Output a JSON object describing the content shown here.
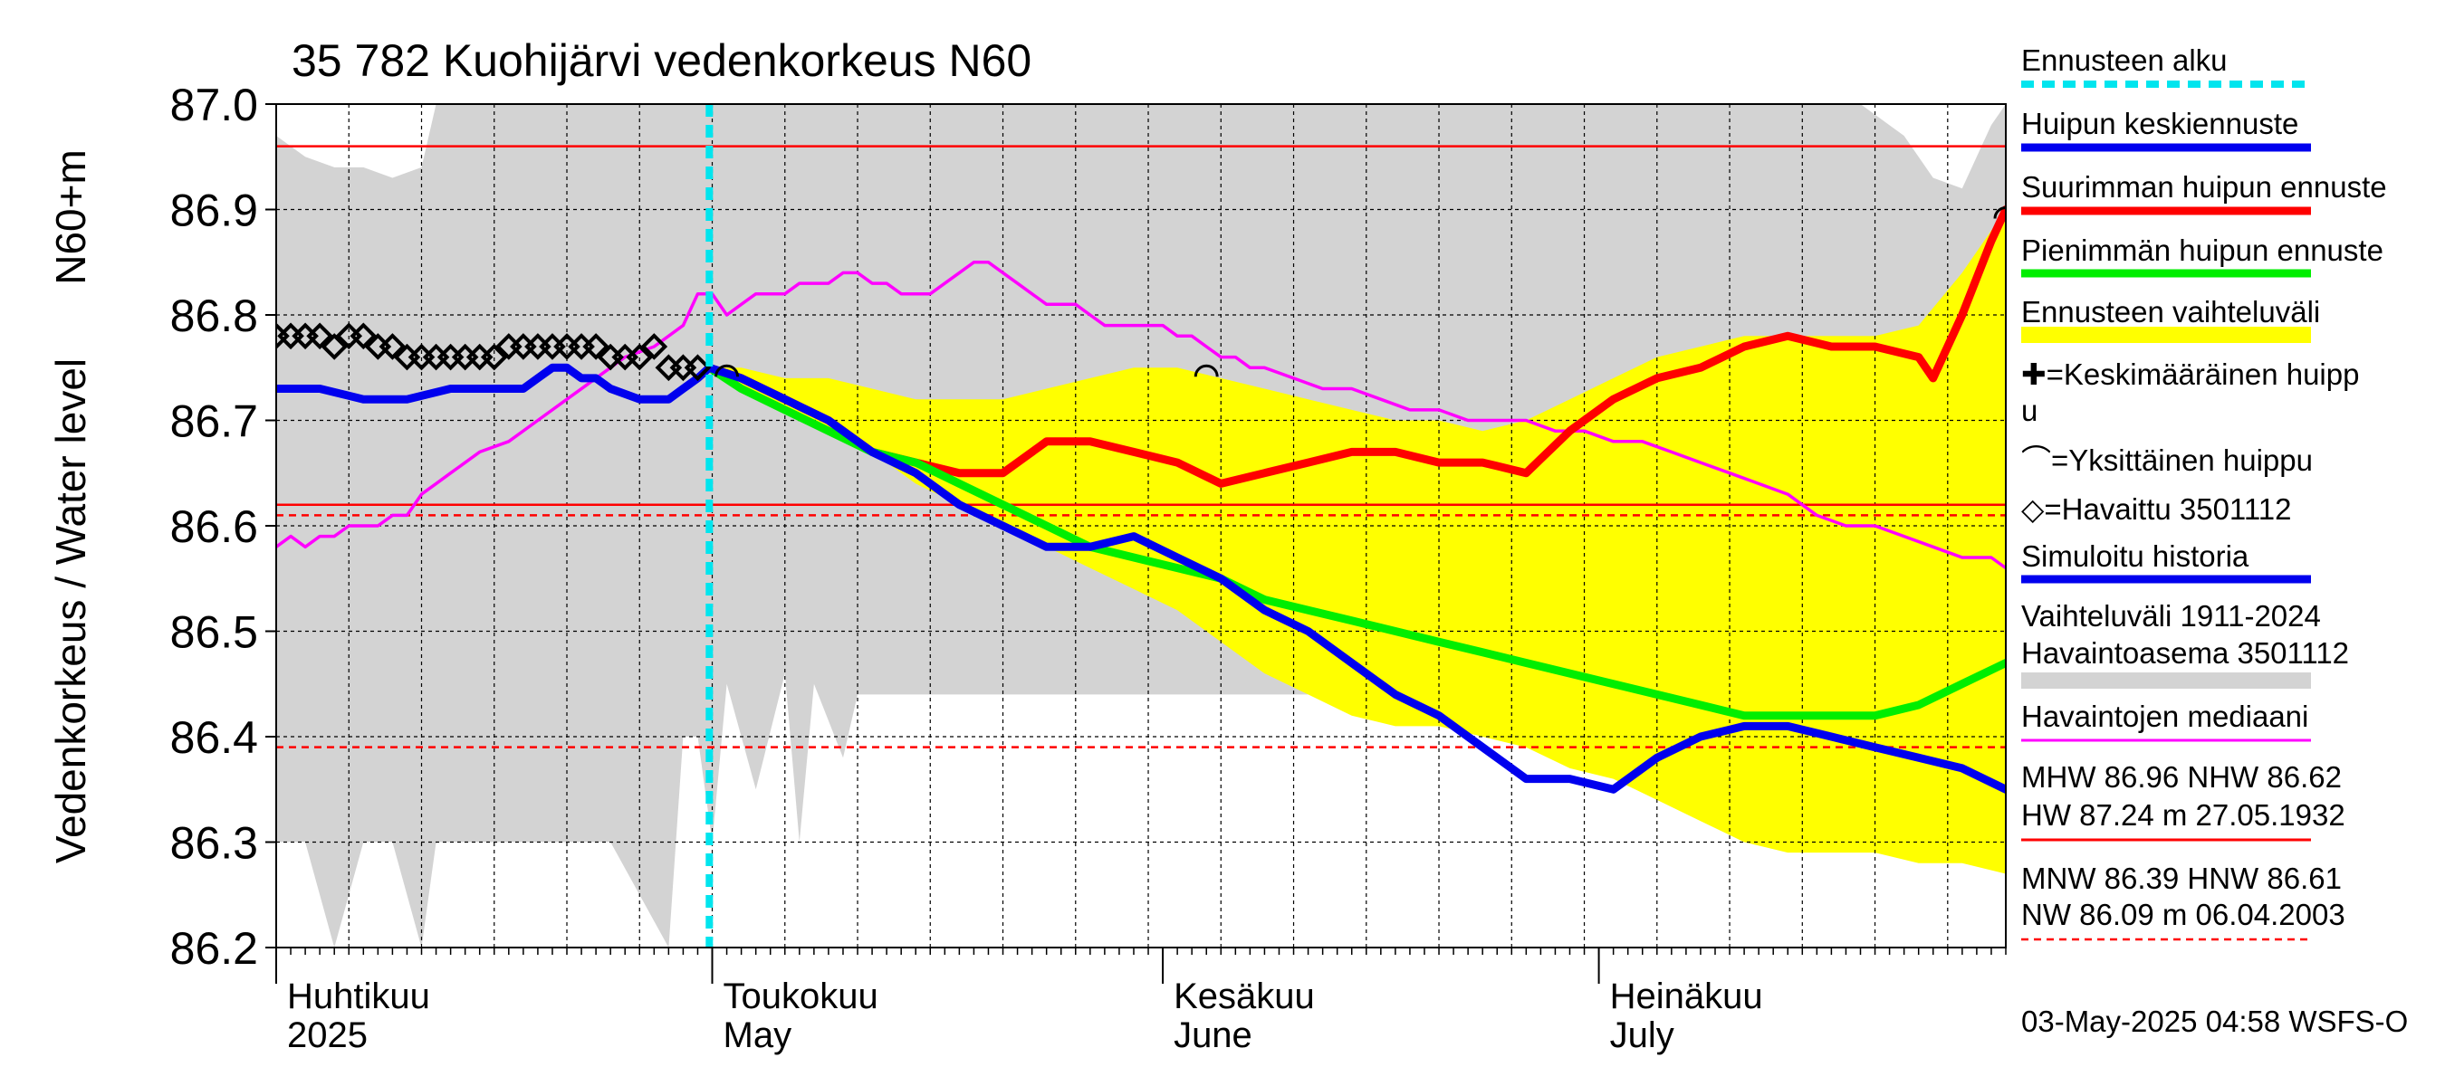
{
  "chart_data": {
    "type": "line",
    "title": "35 782 Kuohijärvi vedenkorkeus N60",
    "ylabel_left": "Vedenkorkeus / Water level",
    "ylabel_right": "N60+m",
    "ylim": [
      86.2,
      87.0
    ],
    "yticks": [
      "86.2",
      "86.3",
      "86.4",
      "86.5",
      "86.6",
      "86.7",
      "86.8",
      "86.9",
      "87.0"
    ],
    "x_range_days": [
      0,
      119
    ],
    "month_labels": [
      {
        "fi": "Huhtikuu",
        "en": "2025",
        "day": 0
      },
      {
        "fi": "Toukokuu",
        "en": "May",
        "day": 30
      },
      {
        "fi": "Kesäkuu",
        "en": "June",
        "day": 61
      },
      {
        "fi": "Heinäkuu",
        "en": "July",
        "day": 91
      }
    ],
    "forecast_start_day": 29.8,
    "reference_lines": [
      {
        "name": "MHW",
        "value": 86.96,
        "color": "#ff0000",
        "style": "solid"
      },
      {
        "name": "NHW",
        "value": 86.62,
        "color": "#ff0000",
        "style": "solid"
      },
      {
        "name": "HNW",
        "value": 86.61,
        "color": "#ff0000",
        "style": "dashed"
      },
      {
        "name": "MNW",
        "value": 86.39,
        "color": "#ff0000",
        "style": "dashed"
      }
    ],
    "grey_band": {
      "x": [
        0,
        2,
        4,
        6,
        8,
        10,
        11,
        13,
        15,
        17,
        20,
        23,
        25,
        27,
        28,
        29,
        30,
        31,
        33,
        35,
        36,
        37,
        39,
        40,
        42,
        45,
        48,
        50,
        52,
        55,
        58,
        61,
        64,
        67,
        70,
        73,
        76,
        79,
        82,
        85,
        88,
        91,
        94,
        97,
        100,
        103,
        106,
        109,
        112,
        114,
        116,
        118,
        119
      ],
      "upper": [
        86.97,
        86.95,
        86.94,
        86.94,
        86.93,
        86.94,
        87.0,
        87.0,
        87.0,
        87.0,
        87.0,
        87.0,
        87.0,
        87.0,
        87.0,
        87.0,
        87.0,
        87.0,
        87.0,
        87.0,
        87.0,
        87.0,
        87.0,
        87.0,
        87.0,
        87.0,
        87.0,
        87.0,
        87.0,
        87.0,
        87.0,
        87.0,
        87.0,
        87.0,
        87.0,
        87.0,
        87.0,
        87.0,
        87.0,
        87.0,
        87.0,
        87.0,
        87.0,
        87.0,
        87.0,
        87.0,
        87.0,
        87.0,
        86.97,
        86.93,
        86.92,
        86.98,
        87.0
      ],
      "lower": [
        86.3,
        86.3,
        86.2,
        86.3,
        86.3,
        86.2,
        86.3,
        86.3,
        86.3,
        86.3,
        86.3,
        86.3,
        86.25,
        86.2,
        86.4,
        86.4,
        86.3,
        86.45,
        86.35,
        86.46,
        86.3,
        86.45,
        86.38,
        86.44,
        86.44,
        86.44,
        86.44,
        86.44,
        86.44,
        86.44,
        86.44,
        86.44,
        86.44,
        86.44,
        86.44,
        86.44,
        86.44,
        86.44,
        86.43,
        86.42,
        86.42,
        86.41,
        86.41,
        86.41,
        86.4,
        86.4,
        86.4,
        86.4,
        86.39,
        86.38,
        86.37,
        86.36,
        86.36
      ]
    },
    "series": [
      {
        "name": "Ennusteen vaihteluväli",
        "kind": "band",
        "color": "#ffff00",
        "x": [
          29.8,
          32,
          35,
          38,
          41,
          44,
          47,
          50,
          53,
          56,
          59,
          62,
          65,
          68,
          71,
          74,
          77,
          80,
          83,
          86,
          89,
          92,
          95,
          98,
          101,
          104,
          107,
          110,
          113,
          116,
          119
        ],
        "upper": [
          86.75,
          86.75,
          86.74,
          86.74,
          86.73,
          86.72,
          86.72,
          86.72,
          86.73,
          86.74,
          86.75,
          86.75,
          86.74,
          86.73,
          86.72,
          86.71,
          86.7,
          86.7,
          86.69,
          86.7,
          86.72,
          86.74,
          86.76,
          86.77,
          86.78,
          86.78,
          86.78,
          86.78,
          86.79,
          86.84,
          86.9
        ],
        "lower": [
          86.75,
          86.73,
          86.71,
          86.69,
          86.67,
          86.64,
          86.62,
          86.6,
          86.58,
          86.56,
          86.54,
          86.52,
          86.49,
          86.46,
          86.44,
          86.42,
          86.41,
          86.41,
          86.4,
          86.39,
          86.37,
          86.36,
          86.34,
          86.32,
          86.3,
          86.29,
          86.29,
          86.29,
          86.28,
          86.28,
          86.27
        ]
      },
      {
        "name": "Havaintojen mediaani",
        "color": "#ff00ff",
        "x": [
          0,
          1,
          2,
          3,
          4,
          5,
          6,
          7,
          8,
          9,
          10,
          11,
          12,
          13,
          14,
          16,
          18,
          20,
          22,
          24,
          26,
          28,
          29,
          30,
          31,
          32,
          33,
          34,
          35,
          36,
          37,
          38,
          39,
          40,
          41,
          42,
          43,
          44,
          45,
          46,
          47,
          48,
          49,
          50,
          51,
          52,
          53,
          54,
          55,
          56,
          57,
          58,
          59,
          60,
          61,
          62,
          63,
          64,
          65,
          66,
          67,
          68,
          70,
          72,
          74,
          76,
          78,
          80,
          82,
          84,
          86,
          88,
          90,
          92,
          94,
          96,
          98,
          100,
          102,
          104,
          106,
          108,
          110,
          112,
          114,
          116,
          118,
          119
        ],
        "values": [
          86.58,
          86.59,
          86.58,
          86.59,
          86.59,
          86.6,
          86.6,
          86.6,
          86.61,
          86.61,
          86.63,
          86.64,
          86.65,
          86.66,
          86.67,
          86.68,
          86.7,
          86.72,
          86.74,
          86.76,
          86.77,
          86.79,
          86.82,
          86.82,
          86.8,
          86.81,
          86.82,
          86.82,
          86.82,
          86.83,
          86.83,
          86.83,
          86.84,
          86.84,
          86.83,
          86.83,
          86.82,
          86.82,
          86.82,
          86.83,
          86.84,
          86.85,
          86.85,
          86.84,
          86.83,
          86.82,
          86.81,
          86.81,
          86.81,
          86.8,
          86.79,
          86.79,
          86.79,
          86.79,
          86.79,
          86.78,
          86.78,
          86.77,
          86.76,
          86.76,
          86.75,
          86.75,
          86.74,
          86.73,
          86.73,
          86.72,
          86.71,
          86.71,
          86.7,
          86.7,
          86.7,
          86.69,
          86.69,
          86.68,
          86.68,
          86.67,
          86.66,
          86.65,
          86.64,
          86.63,
          86.61,
          86.6,
          86.6,
          86.59,
          86.58,
          86.57,
          86.57,
          86.56
        ]
      },
      {
        "name": "Suurimman huipun ennuste",
        "color": "#ff0000",
        "x": [
          29.8,
          32,
          35,
          38,
          41,
          44,
          47,
          50,
          53,
          56,
          59,
          62,
          65,
          68,
          71,
          74,
          77,
          80,
          83,
          86,
          89,
          92,
          95,
          98,
          101,
          104,
          107,
          110,
          113,
          114,
          116,
          118,
          119
        ],
        "values": [
          86.75,
          86.74,
          86.72,
          86.7,
          86.67,
          86.66,
          86.65,
          86.65,
          86.68,
          86.68,
          86.67,
          86.66,
          86.64,
          86.65,
          86.66,
          86.67,
          86.67,
          86.66,
          86.66,
          86.65,
          86.69,
          86.72,
          86.74,
          86.75,
          86.77,
          86.78,
          86.77,
          86.77,
          86.76,
          86.74,
          86.8,
          86.87,
          86.9
        ]
      },
      {
        "name": "Pienimmän huipun ennuste",
        "color": "#00ee00",
        "x": [
          29.8,
          32,
          35,
          38,
          41,
          44,
          47,
          50,
          53,
          56,
          59,
          62,
          65,
          68,
          71,
          74,
          77,
          80,
          83,
          86,
          89,
          92,
          95,
          98,
          101,
          104,
          107,
          110,
          113,
          116,
          119
        ],
        "values": [
          86.75,
          86.73,
          86.71,
          86.69,
          86.67,
          86.66,
          86.64,
          86.62,
          86.6,
          86.58,
          86.57,
          86.56,
          86.55,
          86.53,
          86.52,
          86.51,
          86.5,
          86.49,
          86.48,
          86.47,
          86.46,
          86.45,
          86.44,
          86.43,
          86.42,
          86.42,
          86.42,
          86.42,
          86.43,
          86.45,
          86.47
        ]
      },
      {
        "name": "Huipun keskiennuste",
        "color": "#0000ee",
        "x": [
          0,
          3,
          6,
          9,
          12,
          15,
          17,
          18,
          19,
          20,
          21,
          22,
          23,
          25,
          27,
          28,
          29,
          29.8,
          32,
          35,
          38,
          41,
          44,
          47,
          50,
          53,
          56,
          59,
          62,
          65,
          68,
          71,
          74,
          77,
          80,
          83,
          86,
          89,
          92,
          95,
          98,
          101,
          104,
          107,
          110,
          113,
          116,
          119
        ],
        "values": [
          86.73,
          86.73,
          86.72,
          86.72,
          86.73,
          86.73,
          86.73,
          86.74,
          86.75,
          86.75,
          86.74,
          86.74,
          86.73,
          86.72,
          86.72,
          86.73,
          86.74,
          86.75,
          86.74,
          86.72,
          86.7,
          86.67,
          86.65,
          86.62,
          86.6,
          86.58,
          86.58,
          86.59,
          86.57,
          86.55,
          86.52,
          86.5,
          86.47,
          86.44,
          86.42,
          86.39,
          86.36,
          86.36,
          86.35,
          86.38,
          86.4,
          86.41,
          86.41,
          86.4,
          86.39,
          86.38,
          86.37,
          86.35
        ]
      }
    ],
    "observed": {
      "name": "Havaittu 3501112",
      "x": [
        0,
        1,
        2,
        3,
        4,
        5,
        6,
        7,
        8,
        9,
        10,
        11,
        12,
        13,
        14,
        15,
        16,
        17,
        18,
        19,
        20,
        21,
        22,
        23,
        24,
        25,
        26,
        27,
        28,
        29
      ],
      "values": [
        86.78,
        86.78,
        86.78,
        86.78,
        86.77,
        86.78,
        86.78,
        86.77,
        86.77,
        86.76,
        86.76,
        86.76,
        86.76,
        86.76,
        86.76,
        86.76,
        86.77,
        86.77,
        86.77,
        86.77,
        86.77,
        86.77,
        86.77,
        86.76,
        86.76,
        86.76,
        86.77,
        86.75,
        86.75,
        86.75
      ]
    },
    "single_peaks": [
      {
        "x": 31,
        "value": 86.75
      },
      {
        "x": 64,
        "value": 86.75
      },
      {
        "x": 119,
        "value": 86.9
      }
    ],
    "legend": [
      {
        "label": "Ennusteen alku",
        "swatch": "dotted",
        "color": "#00e5ee"
      },
      {
        "label": "Huipun keskiennuste",
        "swatch": "line",
        "color": "#0000ee"
      },
      {
        "label": "Suurimman huipun ennuste",
        "swatch": "line",
        "color": "#ff0000"
      },
      {
        "label": "Pienimmän huipun ennuste",
        "swatch": "line",
        "color": "#00ee00"
      },
      {
        "label": "Ennusteen vaihteluväli",
        "swatch": "thick",
        "color": "#ffff00"
      },
      {
        "label": "✚=Keskimääräinen huipp",
        "label2": "u",
        "swatch": "none"
      },
      {
        "label": "⌒=Yksittäinen huippu",
        "swatch": "none"
      },
      {
        "label": "◇=Havaittu 3501112",
        "swatch": "none"
      },
      {
        "label": "Simuloitu historia",
        "swatch": "line",
        "color": "#0000ee"
      },
      {
        "label": "Vaihteluväli 1911-2024",
        "label2": " Havaintoasema 3501112",
        "swatch": "thick",
        "color": "#d3d3d3"
      },
      {
        "label": "Havaintojen mediaani",
        "swatch": "thin",
        "color": "#ff00ff"
      },
      {
        "label": "MHW  86.96 NHW  86.62",
        "label2": "HW  87.24 m 27.05.1932",
        "swatch": "thin",
        "color": "#ff0000"
      },
      {
        "label": "MNW  86.39 HNW  86.61",
        "label2": "NW  86.09 m 06.04.2003",
        "swatch": "dashed",
        "color": "#ff0000"
      }
    ],
    "footer": "03-May-2025 04:58 WSFS-O",
    "colors": {
      "grey_band": "#d3d3d3",
      "forecast_band": "#ffff00",
      "forecast_start": "#00e5ee",
      "reference": "#ff0000"
    }
  }
}
